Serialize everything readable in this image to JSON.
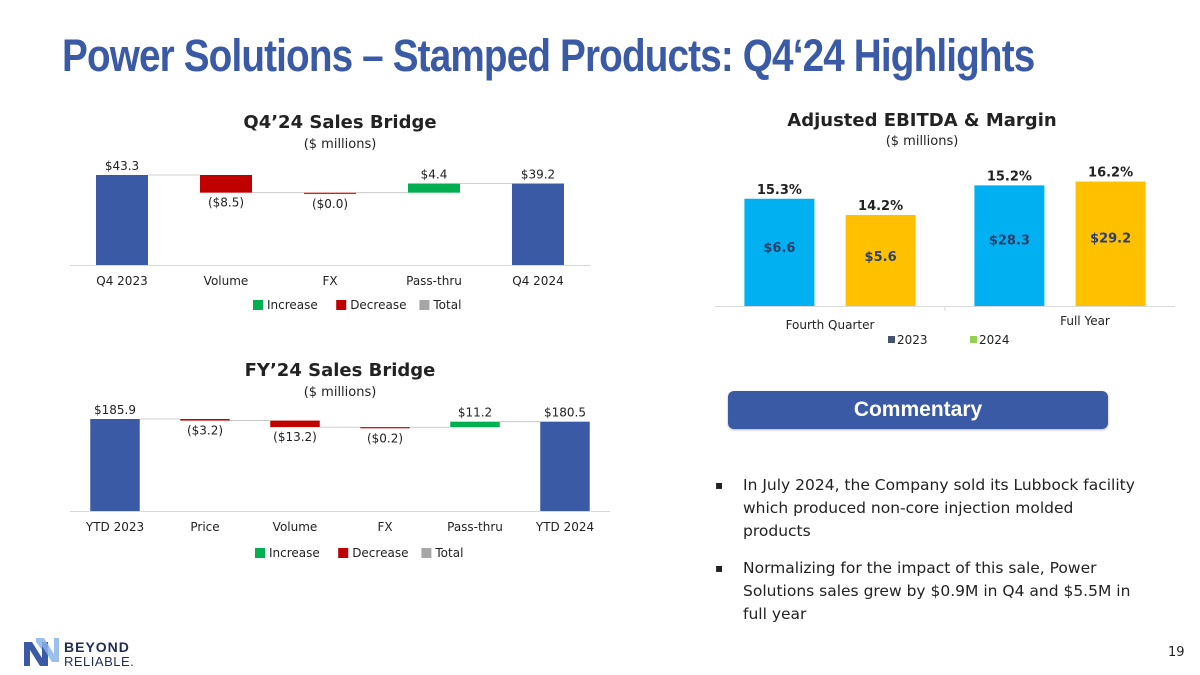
{
  "page": {
    "title": "Power Solutions – Stamped Products: Q4‘24 Highlights",
    "page_number": "19"
  },
  "chart_data": [
    {
      "type": "waterfall",
      "title": "Q4’24 Sales Bridge",
      "subtitle": "($ millions)",
      "categories": [
        "Q4 2023",
        "Volume",
        "FX",
        "Pass-thru",
        "Q4 2024"
      ],
      "values": [
        43.3,
        -8.5,
        0.0,
        4.4,
        39.2
      ],
      "kinds": [
        "total",
        "decrease",
        "decrease",
        "increase",
        "total"
      ],
      "labels": [
        "$43.3",
        "($8.5)",
        "($0.0)",
        "$4.4",
        "$39.2"
      ],
      "legend": [
        "Increase",
        "Decrease",
        "Total"
      ],
      "ylim": [
        0,
        43.3
      ]
    },
    {
      "type": "bar",
      "title": "Adjusted EBITDA & Margin",
      "subtitle": "($ millions)",
      "categories": [
        "Fourth Quarter",
        "Full Year"
      ],
      "series": [
        {
          "name": "2023",
          "values": [
            6.6,
            28.3
          ],
          "labels": [
            "$6.6",
            "$28.3"
          ],
          "margins": [
            "15.3%",
            "15.2%"
          ]
        },
        {
          "name": "2024",
          "values": [
            5.6,
            29.2
          ],
          "labels": [
            "$5.6",
            "$29.2"
          ],
          "margins": [
            "14.2%",
            "16.2%"
          ]
        }
      ],
      "segment_max": [
        8.0,
        30.5
      ]
    },
    {
      "type": "waterfall",
      "title": "FY’24 Sales Bridge",
      "subtitle": "($ millions)",
      "categories": [
        "YTD 2023",
        "Price",
        "Volume",
        "FX",
        "Pass-thru",
        "YTD 2024"
      ],
      "values": [
        185.9,
        -3.2,
        -13.2,
        -0.2,
        11.2,
        180.5
      ],
      "kinds": [
        "total",
        "decrease",
        "decrease",
        "decrease",
        "increase",
        "total"
      ],
      "labels": [
        "$185.9",
        "($3.2)",
        "($13.2)",
        "($0.2)",
        "$11.2",
        "$180.5"
      ],
      "legend": [
        "Increase",
        "Decrease",
        "Total"
      ],
      "ylim": [
        0,
        185.9
      ]
    }
  ],
  "colors": {
    "brand": "#3a5aa6",
    "increase": "#00b050",
    "decrease": "#c00000",
    "total": "#3a5aa6",
    "total_legend": "#a6a6a6",
    "bar_2023": "#00b0f0",
    "bar_2024": "#ffc000",
    "legend_2023": "#44546a",
    "legend_2024": "#92d050"
  },
  "commentary": {
    "header": "Commentary",
    "bullet_symbol": "▪",
    "items": [
      "In July 2024, the Company sold its Lubbock facility which produced non-core injection molded products",
      "Normalizing for the impact of this sale, Power Solutions sales grew by $0.9M in Q4 and $5.5M in full year"
    ]
  },
  "logo": {
    "line1": "BEYOND",
    "line2": "RELIABLE."
  }
}
